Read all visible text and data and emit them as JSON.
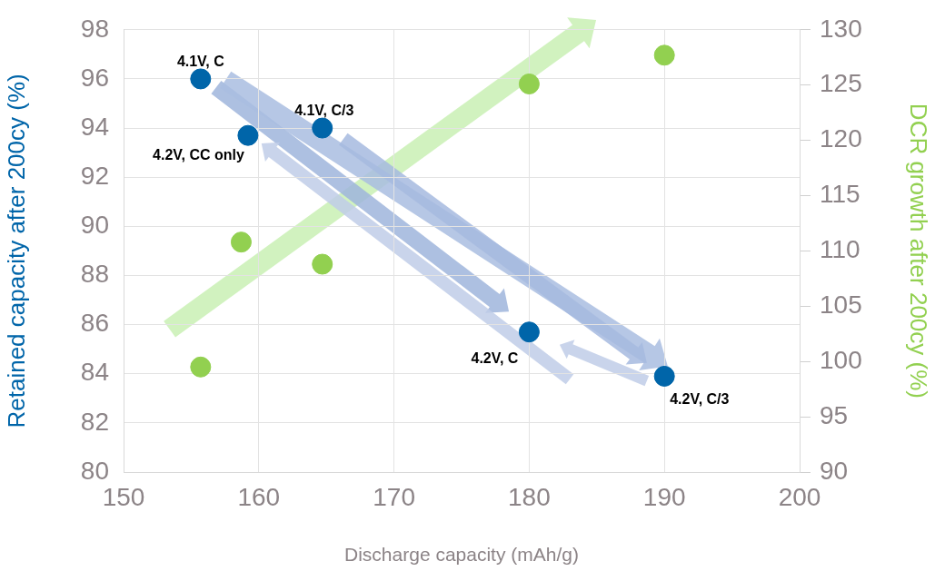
{
  "chart_data": {
    "type": "scatter",
    "xlabel": "Discharge capacity (mAh/g)",
    "ylabel": "Retained capacity after 200cy (%)",
    "y2label": "DCR growth after 200cy (%)",
    "xlim": [
      150,
      200
    ],
    "xticks": [
      150,
      160,
      170,
      180,
      190,
      200
    ],
    "ylim": [
      80,
      98
    ],
    "yticks": [
      80,
      82,
      84,
      86,
      88,
      90,
      92,
      94,
      96,
      98
    ],
    "y2lim": [
      90,
      130
    ],
    "y2ticks": [
      90,
      95,
      100,
      105,
      110,
      115,
      120,
      125,
      130
    ],
    "grid": true,
    "legend": false,
    "marker": "circle",
    "series": [
      {
        "color": "#0065a9",
        "x": [
          155.7,
          159.2,
          164.7,
          180,
          190
        ],
        "values": [
          96.0,
          93.7,
          94.0,
          85.7,
          83.9
        ]
      },
      {
        "color": "#92d050",
        "axis": "y2",
        "x": [
          155.7,
          158.7,
          164.7,
          180,
          190
        ],
        "values": [
          99.5,
          110.8,
          108.8,
          125.1,
          127.7
        ]
      }
    ],
    "annotations": [
      {
        "text": "4.1V, C",
        "x": 155.7,
        "y": 96.0
      },
      {
        "text": "4.2V, CC only",
        "x": 159.2,
        "y": 93.7
      },
      {
        "text": "4.1V, C/3",
        "x": 164.7,
        "y": 94.0
      },
      {
        "text": "4.2V, C",
        "x": 180,
        "y": 85.7
      },
      {
        "text": "4.2V, C/3",
        "x": 190,
        "y": 83.9
      }
    ]
  }
}
